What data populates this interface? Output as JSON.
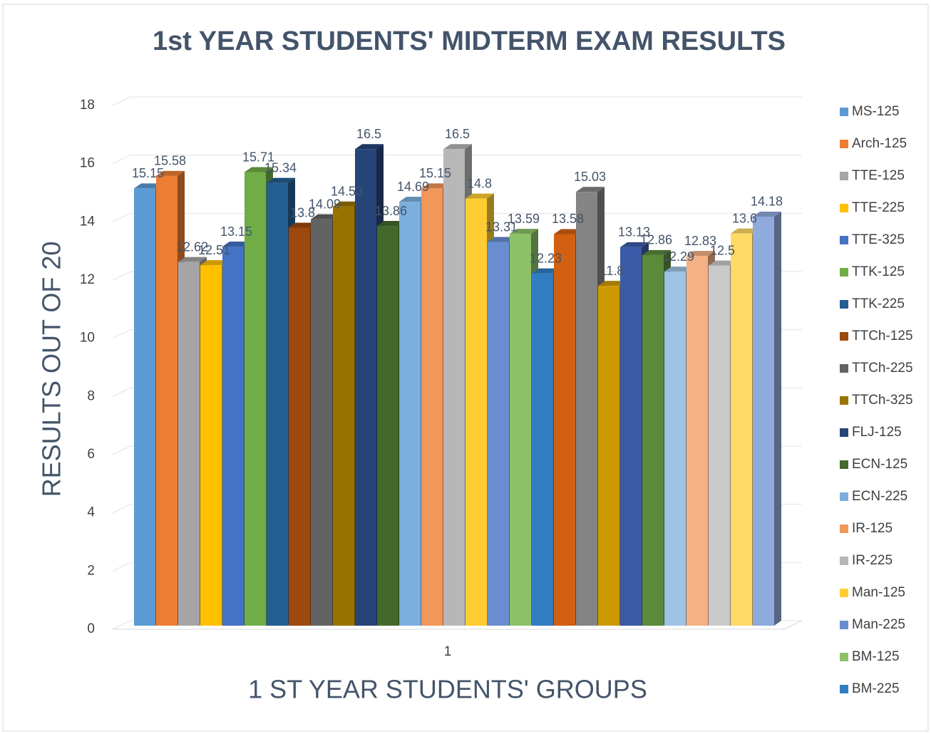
{
  "chart_data": {
    "type": "bar3d",
    "title": "1st YEAR STUDENTS' MIDTERM EXAM RESULTS",
    "x_label": "1 ST YEAR STUDENTS' GROUPS",
    "y_label": "RESULTS OUT OF 20",
    "categories": [
      "1"
    ],
    "ylim": [
      0,
      18
    ],
    "yticks": [
      0,
      2,
      4,
      6,
      8,
      10,
      12,
      14,
      16,
      18
    ],
    "grid": true,
    "legend": "right",
    "series": [
      {
        "name": "MS-125",
        "color": "#5b9bd5",
        "values": [
          15.15
        ]
      },
      {
        "name": "Arch-125",
        "color": "#ed7d31",
        "values": [
          15.58
        ]
      },
      {
        "name": "TTE-125",
        "color": "#a5a5a5",
        "values": [
          12.62
        ]
      },
      {
        "name": "TTE-225",
        "color": "#ffc000",
        "values": [
          12.51
        ]
      },
      {
        "name": "TTE-325",
        "color": "#4472c4",
        "values": [
          13.15
        ]
      },
      {
        "name": "TTK-125",
        "color": "#70ad47",
        "values": [
          15.71
        ]
      },
      {
        "name": "TTK-225",
        "color": "#255e91",
        "values": [
          15.34
        ]
      },
      {
        "name": "TTCh-125",
        "color": "#9e480e",
        "values": [
          13.8
        ]
      },
      {
        "name": "TTCh-225",
        "color": "#636363",
        "values": [
          14.09
        ]
      },
      {
        "name": "TTCh-325",
        "color": "#997300",
        "values": [
          14.53
        ]
      },
      {
        "name": "FLJ-125",
        "color": "#264478",
        "values": [
          16.5
        ]
      },
      {
        "name": "ECN-125",
        "color": "#43682b",
        "values": [
          13.86
        ]
      },
      {
        "name": "ECN-225",
        "color": "#7cafdd",
        "values": [
          14.69
        ]
      },
      {
        "name": "IR-125",
        "color": "#f1975a",
        "values": [
          15.15
        ]
      },
      {
        "name": "IR-225",
        "color": "#b7b7b7",
        "values": [
          16.5
        ]
      },
      {
        "name": "Man-125",
        "color": "#ffcd33",
        "values": [
          14.8
        ]
      },
      {
        "name": "Man-225",
        "color": "#698ed0",
        "values": [
          13.31
        ]
      },
      {
        "name": "BM-125",
        "color": "#8cc168",
        "values": [
          13.59
        ]
      },
      {
        "name": "BM-225",
        "color": "#327dc2",
        "values": [
          12.23
        ]
      },
      {
        "name": null,
        "color": "#d26012",
        "values": [
          13.58
        ]
      },
      {
        "name": null,
        "color": "#848484",
        "values": [
          15.03
        ]
      },
      {
        "name": null,
        "color": "#cc9a00",
        "values": [
          11.8
        ]
      },
      {
        "name": null,
        "color": "#3a5ba8",
        "values": [
          13.13
        ]
      },
      {
        "name": null,
        "color": "#5a8a3a",
        "values": [
          12.86
        ]
      },
      {
        "name": null,
        "color": "#9dc3e6",
        "values": [
          12.29
        ]
      },
      {
        "name": null,
        "color": "#f4b183",
        "values": [
          12.83
        ]
      },
      {
        "name": null,
        "color": "#c9c9c9",
        "values": [
          12.5
        ]
      },
      {
        "name": null,
        "color": "#ffd966",
        "values": [
          13.6
        ]
      },
      {
        "name": null,
        "color": "#8faadc",
        "values": [
          14.18
        ]
      }
    ]
  }
}
